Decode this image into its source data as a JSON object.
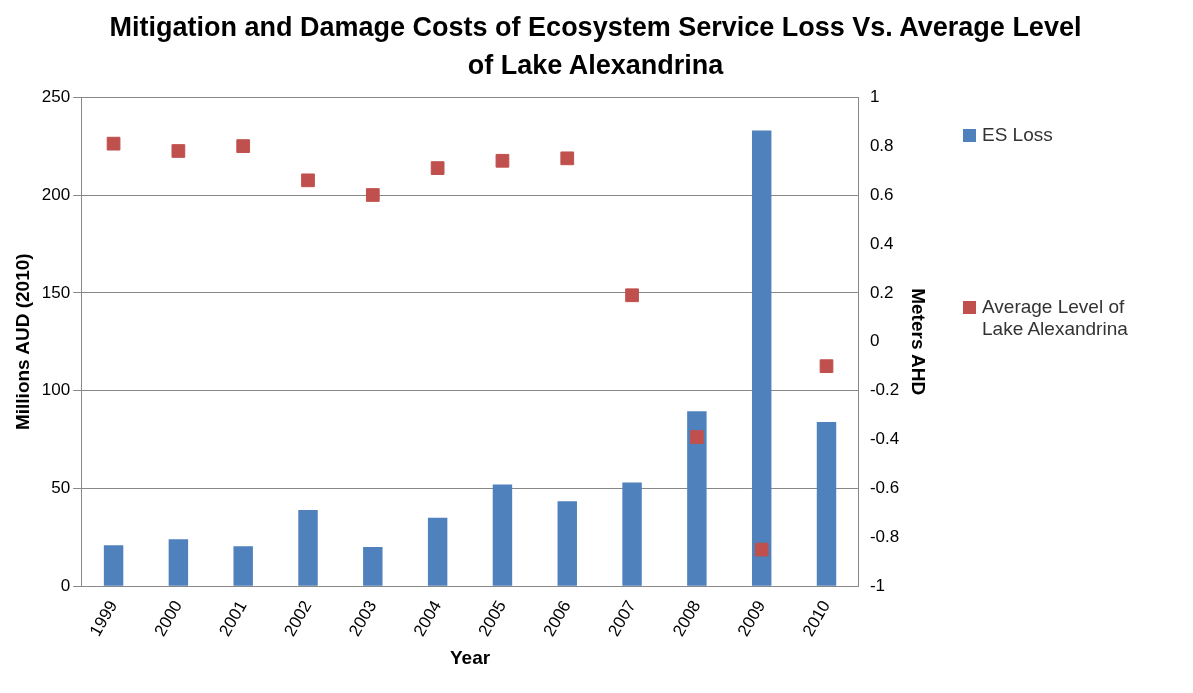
{
  "chart_data": {
    "type": "bar",
    "title": "Mitigation and Damage Costs of Ecosystem Service Loss Vs. Average Level of Lake Alexandrina",
    "xlabel": "Year",
    "ylabel": "Millions AUD (2010)",
    "y2label": "Meters AHD",
    "categories": [
      "1999",
      "2000",
      "2001",
      "2002",
      "2003",
      "2004",
      "2005",
      "2006",
      "2007",
      "2008",
      "2009",
      "2010"
    ],
    "series": [
      {
        "name": "ES Loss",
        "color": "#4f81bd",
        "values": [
          21,
          24,
          20.5,
          39,
          20,
          35,
          52,
          43.5,
          53,
          89.5,
          233,
          84
        ]
      },
      {
        "name": "Average Level of Lake Alexandrina",
        "type": "scatter",
        "axis": "y2",
        "color": "#c0504d",
        "values": [
          0.81,
          0.78,
          0.8,
          0.66,
          0.6,
          0.71,
          0.74,
          0.75,
          0.19,
          -0.39,
          -0.85,
          -0.1
        ]
      }
    ],
    "ylim": [
      0,
      250
    ],
    "yticks": [
      0,
      50,
      100,
      150,
      200,
      250
    ],
    "y2lim": [
      -1,
      1
    ],
    "y2ticks": [
      -1,
      -0.8,
      -0.6,
      -0.4,
      -0.2,
      0,
      0.2,
      0.4,
      0.6,
      0.8,
      1
    ],
    "grid": "y",
    "legend": "right",
    "marker": "square"
  }
}
